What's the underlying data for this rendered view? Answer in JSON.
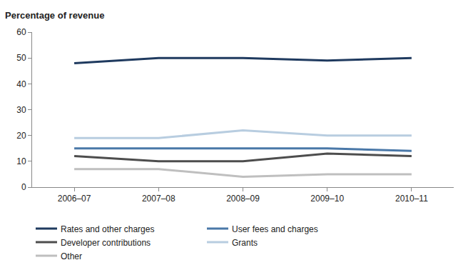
{
  "chart_data": {
    "type": "line",
    "y_label": "Percentage of revenue",
    "categories": [
      "2006–07",
      "2007–08",
      "2008–09",
      "2009–10",
      "2010–11"
    ],
    "series": [
      {
        "name": "Rates and other charges",
        "color": "#1f3a5f",
        "values": [
          48,
          50,
          50,
          49,
          50
        ]
      },
      {
        "name": "User fees and charges",
        "color": "#4a78a8",
        "values": [
          15,
          15,
          15,
          15,
          14
        ]
      },
      {
        "name": "Developer contributions",
        "color": "#4d4d4d",
        "values": [
          12,
          10,
          10,
          13,
          12
        ]
      },
      {
        "name": "Grants",
        "color": "#b8cde0",
        "values": [
          19,
          19,
          22,
          20,
          20
        ]
      },
      {
        "name": "Other",
        "color": "#bfbfbf",
        "values": [
          7,
          7,
          4,
          5,
          5
        ]
      }
    ],
    "ylim": [
      0,
      60
    ],
    "yticks": [
      0,
      10,
      20,
      30,
      40,
      50,
      60
    ],
    "grid": false,
    "legend": "bottom"
  }
}
